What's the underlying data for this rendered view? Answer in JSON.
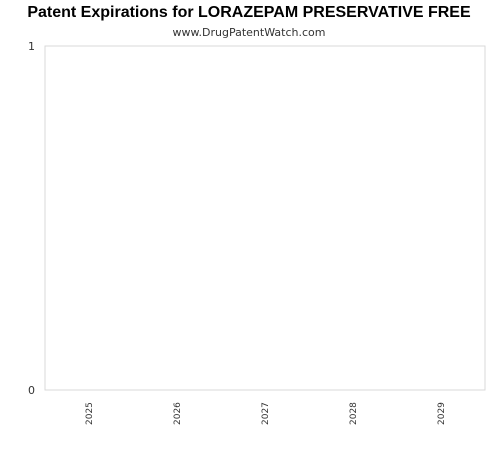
{
  "chart_data": {
    "type": "bar",
    "title": "Patent Expirations for LORAZEPAM PRESERVATIVE FREE",
    "subtitle": "www.DrugPatentWatch.com",
    "categories": [
      "2025",
      "2026",
      "2027",
      "2028",
      "2029"
    ],
    "values": [
      0,
      0,
      0,
      0,
      0
    ],
    "xlabel": "",
    "ylabel": "",
    "ylim": [
      0,
      1
    ],
    "yticks": [
      "0",
      "1"
    ],
    "grid": false,
    "legend": "none",
    "colors": {
      "frame": "#d9d9d9",
      "tick_label": "#333333",
      "title": "#000000"
    }
  }
}
